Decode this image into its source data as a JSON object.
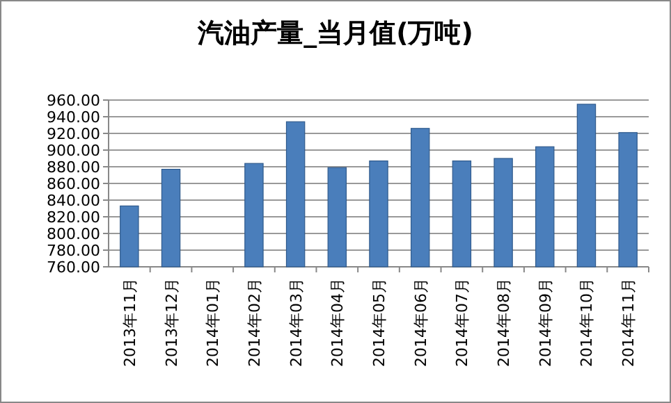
{
  "chart_data": {
    "type": "bar",
    "title": "汽油产量_当月值(万吨)",
    "categories": [
      "2013年11月",
      "2013年12月",
      "2014年01月",
      "2014年02月",
      "2014年03月",
      "2014年04月",
      "2014年05月",
      "2014年06月",
      "2014年07月",
      "2014年08月",
      "2014年09月",
      "2014年10月",
      "2014年11月"
    ],
    "values": [
      833,
      877,
      null,
      884,
      934,
      879,
      887,
      926,
      887,
      890,
      904,
      955,
      921
    ],
    "color": "#4a7ebb",
    "ylim": [
      760,
      960
    ],
    "yticks": [
      {
        "value": 760,
        "label": "760.00"
      },
      {
        "value": 780,
        "label": "780.00"
      },
      {
        "value": 800,
        "label": "800.00"
      },
      {
        "value": 820,
        "label": "820.00"
      },
      {
        "value": 840,
        "label": "840.00"
      },
      {
        "value": 860,
        "label": "860.00"
      },
      {
        "value": 880,
        "label": "880.00"
      },
      {
        "value": 900,
        "label": "900.00"
      },
      {
        "value": 920,
        "label": "920.00"
      },
      {
        "value": 940,
        "label": "940.00"
      },
      {
        "value": 960,
        "label": "960.00"
      }
    ],
    "grid": "y"
  }
}
